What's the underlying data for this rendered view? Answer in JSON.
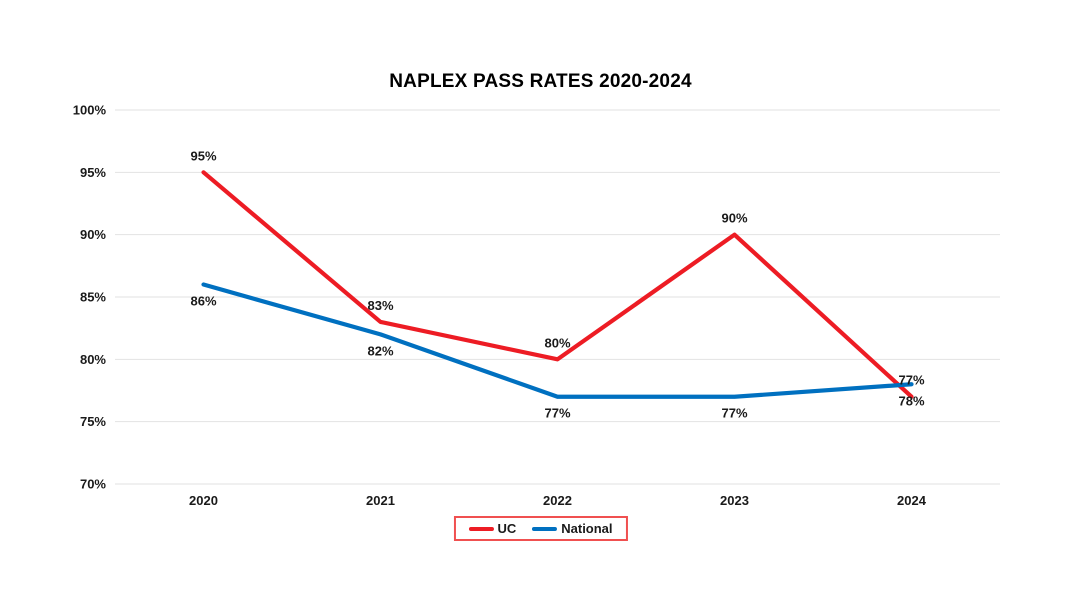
{
  "title": "NAPLEX PASS RATES 2020-2024",
  "chart_data": {
    "type": "line",
    "title": "NAPLEX PASS RATES 2020-2024",
    "categories": [
      "2020",
      "2021",
      "2022",
      "2023",
      "2024"
    ],
    "series": [
      {
        "name": "UC",
        "values": [
          95,
          83,
          80,
          90,
          77
        ],
        "data_labels": [
          "95%",
          "83%",
          "80%",
          "90%",
          "77%"
        ],
        "color": "#ED1C24",
        "label_position": "above"
      },
      {
        "name": "National",
        "values": [
          86,
          82,
          77,
          77,
          78
        ],
        "data_labels": [
          "86%",
          "82%",
          "77%",
          "77%",
          "78%"
        ],
        "color": "#0070C0",
        "label_position": "below"
      }
    ],
    "xlabel": "",
    "ylabel": "",
    "ylim": [
      70,
      100
    ],
    "ytick_step": 5,
    "ytick_labels": [
      "70%",
      "75%",
      "80%",
      "85%",
      "90%",
      "95%",
      "100%"
    ],
    "grid": "horizontal",
    "legend_position": "bottom"
  },
  "legend": {
    "items": [
      {
        "label": "UC",
        "color": "#ED1C24"
      },
      {
        "label": "National",
        "color": "#0070C0"
      }
    ],
    "border_color": "#F05050"
  },
  "colors": {
    "background": "#FFFFFF",
    "gridline": "#E2E2E2",
    "text": "#1A1A1A",
    "uc_red": "#ED1C24",
    "national_blue": "#0070C0",
    "legend_border": "#F05050"
  }
}
